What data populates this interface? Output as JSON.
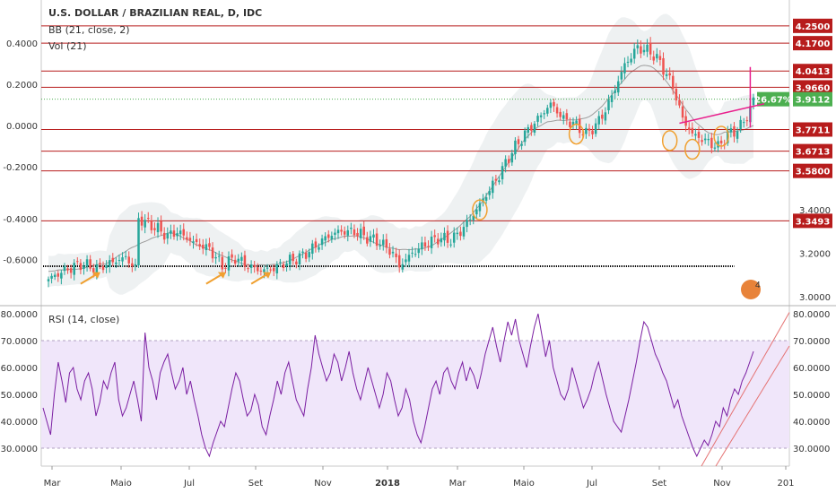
{
  "header": {
    "title": "U.S. DOLLAR / BRAZILIAN REAL, D, IDC",
    "bb_label": "BB (21, close, 2)",
    "vol_label": "Vol (21)",
    "rsi_label": "RSI (14, close)",
    "badge_text": "4"
  },
  "colors": {
    "candle_up": "#26a69a",
    "candle_down": "#ef5350",
    "level_line": "#b71c1c",
    "level_label_bg": "#b71c1c",
    "last_price_bg": "#4caf50",
    "rsi_line": "#7b1fa2",
    "rsi_band": "#f0e6fa",
    "trend_line": "#e91e8c",
    "arrow": "#f0a030",
    "circle": "#f0a030",
    "support_line": "#000000"
  },
  "chart_data": [
    {
      "type": "candlestick",
      "title": "U.S. DOLLAR / BRAZILIAN REAL, D, IDC",
      "x_tick_labels": [
        "Mar",
        "Maio",
        "Jul",
        "Set",
        "Nov",
        "2018",
        "Mar",
        "Maio",
        "Jul",
        "Set",
        "Nov",
        "201"
      ],
      "left_axis_ticks": [
        "0.4000",
        "0.2000",
        "0.0000",
        "-0.2000",
        "-0.4000",
        "-0.6000"
      ],
      "right_axis_ticks": [
        "3.4000",
        "3.2000",
        "3.0000"
      ],
      "ylim": [
        2.97,
        4.27
      ],
      "levels": [
        4.25,
        4.17,
        4.0413,
        3.966,
        3.7711,
        3.6713,
        3.58,
        3.3493
      ],
      "level_labels": [
        "4.2500",
        "4.1700",
        "4.0413",
        "3.9660",
        "3.7711",
        "3.6713",
        "3.5800",
        "3.3493"
      ],
      "last_price": 3.9112,
      "last_price_label": "3.9112",
      "change_label": "26.67%",
      "support_level": 3.14,
      "close_path": [
        [
          0,
          3.08
        ],
        [
          5,
          3.12
        ],
        [
          10,
          3.15
        ],
        [
          15,
          3.13
        ],
        [
          20,
          3.16
        ],
        [
          24,
          3.18
        ],
        [
          27,
          3.13
        ],
        [
          28,
          3.36
        ],
        [
          33,
          3.32
        ],
        [
          37,
          3.28
        ],
        [
          40,
          3.3
        ],
        [
          45,
          3.25
        ],
        [
          50,
          3.22
        ],
        [
          54,
          3.14
        ],
        [
          58,
          3.18
        ],
        [
          62,
          3.14
        ],
        [
          66,
          3.12
        ],
        [
          70,
          3.13
        ],
        [
          74,
          3.16
        ],
        [
          78,
          3.18
        ],
        [
          82,
          3.22
        ],
        [
          86,
          3.27
        ],
        [
          90,
          3.3
        ],
        [
          95,
          3.3
        ],
        [
          98,
          3.28
        ],
        [
          103,
          3.25
        ],
        [
          107,
          3.2
        ],
        [
          109,
          3.14
        ],
        [
          113,
          3.2
        ],
        [
          117,
          3.24
        ],
        [
          121,
          3.27
        ],
        [
          125,
          3.26
        ],
        [
          128,
          3.3
        ],
        [
          132,
          3.38
        ],
        [
          136,
          3.47
        ],
        [
          140,
          3.56
        ],
        [
          144,
          3.67
        ],
        [
          148,
          3.75
        ],
        [
          152,
          3.82
        ],
        [
          156,
          3.89
        ],
        [
          160,
          3.82
        ],
        [
          163,
          3.8
        ],
        [
          167,
          3.75
        ],
        [
          170,
          3.79
        ],
        [
          173,
          3.86
        ],
        [
          176,
          3.96
        ],
        [
          179,
          4.07
        ],
        [
          183,
          4.15
        ],
        [
          187,
          4.13
        ],
        [
          190,
          4.08
        ],
        [
          194,
          3.97
        ],
        [
          197,
          3.82
        ],
        [
          200,
          3.75
        ],
        [
          204,
          3.72
        ],
        [
          208,
          3.69
        ],
        [
          211,
          3.75
        ],
        [
          214,
          3.77
        ],
        [
          217,
          3.83
        ],
        [
          219,
          3.91
        ]
      ],
      "circled_points": [
        [
          164,
          3.75
        ],
        [
          193,
          3.72
        ],
        [
          200,
          3.68
        ],
        [
          209,
          3.74
        ],
        [
          134,
          3.4
        ]
      ]
    },
    {
      "type": "line",
      "title": "RSI (14, close)",
      "y_tick_labels": [
        "80.0000",
        "70.0000",
        "60.0000",
        "50.0000",
        "40.0000",
        "30.0000"
      ],
      "ylim": [
        24,
        82
      ],
      "band": [
        30,
        70
      ],
      "values": [
        45,
        40,
        35,
        50,
        62,
        55,
        47,
        58,
        60,
        52,
        48,
        55,
        58,
        52,
        42,
        47,
        55,
        52,
        58,
        62,
        48,
        42,
        45,
        50,
        55,
        48,
        40,
        73,
        60,
        55,
        48,
        58,
        62,
        65,
        58,
        52,
        55,
        60,
        50,
        55,
        48,
        42,
        35,
        30,
        27,
        32,
        36,
        40,
        38,
        45,
        52,
        58,
        55,
        48,
        42,
        44,
        50,
        46,
        38,
        35,
        42,
        48,
        55,
        50,
        58,
        62,
        55,
        48,
        45,
        42,
        52,
        60,
        72,
        65,
        60,
        55,
        58,
        65,
        62,
        55,
        60,
        66,
        58,
        52,
        48,
        54,
        60,
        55,
        50,
        45,
        50,
        58,
        55,
        48,
        42,
        45,
        52,
        48,
        40,
        35,
        32,
        38,
        45,
        52,
        55,
        50,
        58,
        60,
        55,
        52,
        58,
        62,
        55,
        60,
        57,
        52,
        58,
        65,
        70,
        75,
        68,
        62,
        70,
        77,
        72,
        78,
        70,
        65,
        60,
        68,
        75,
        80,
        72,
        64,
        70,
        60,
        55,
        50,
        48,
        52,
        60,
        55,
        50,
        45,
        48,
        52,
        58,
        62,
        56,
        50,
        45,
        40,
        38,
        36,
        42,
        48,
        55,
        62,
        70,
        77,
        75,
        70,
        65,
        62,
        58,
        55,
        50,
        45,
        48,
        42,
        38,
        34,
        30,
        27,
        30,
        33,
        31,
        35,
        40,
        38,
        45,
        42,
        48,
        52,
        50,
        55,
        58,
        62,
        66
      ]
    }
  ]
}
